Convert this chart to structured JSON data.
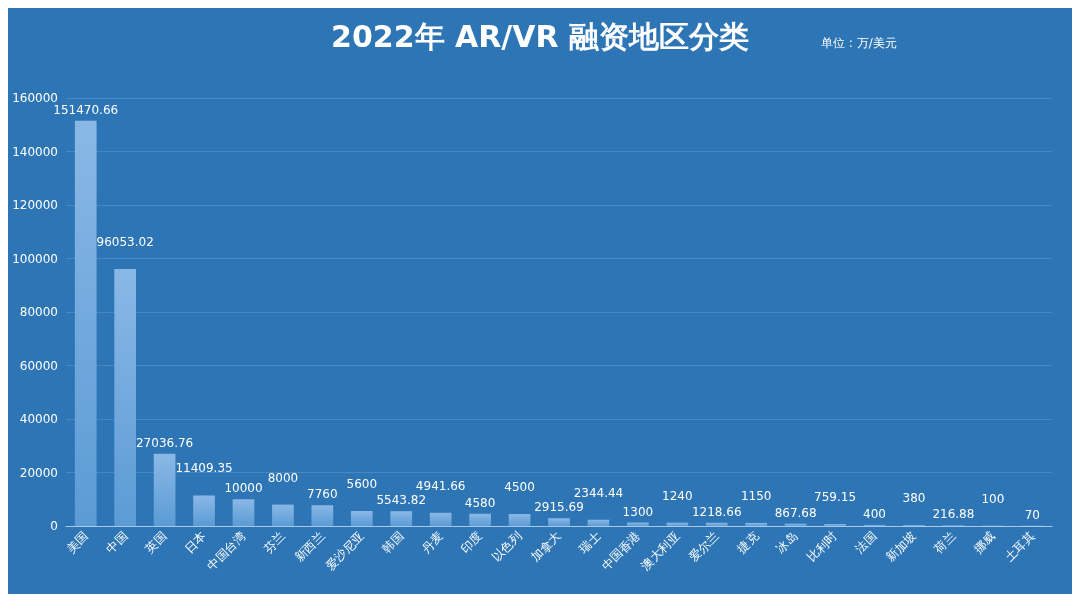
{
  "chart_data": {
    "type": "bar",
    "title": "2022年 AR/VR 融资地区分类",
    "subtitle": "单位 : 万/美元",
    "categories": [
      "美国",
      "中国",
      "英国",
      "日本",
      "中国台湾",
      "芬兰",
      "新西兰",
      "爱沙尼亚",
      "韩国",
      "丹麦",
      "印度",
      "以色列",
      "加拿大",
      "瑞士",
      "中国香港",
      "澳大利亚",
      "爱尔兰",
      "捷克",
      "冰岛",
      "比利时",
      "法国",
      "新加坡",
      "荷兰",
      "挪威",
      "土耳其"
    ],
    "values": [
      151470.66,
      96053.02,
      27036.76,
      11409.35,
      10000,
      8000,
      7760,
      5600,
      5543.82,
      4941.66,
      4580,
      4500,
      2915.69,
      2344.44,
      1300,
      1240,
      1218.66,
      1150,
      867.68,
      759.15,
      400,
      380,
      216.88,
      100,
      70
    ],
    "color": "#5b9bd5",
    "ylim": [
      0,
      160000
    ],
    "yticks": [
      0,
      20000,
      40000,
      60000,
      80000,
      100000,
      120000,
      140000,
      160000
    ],
    "grid": "y",
    "data_labels": true
  }
}
